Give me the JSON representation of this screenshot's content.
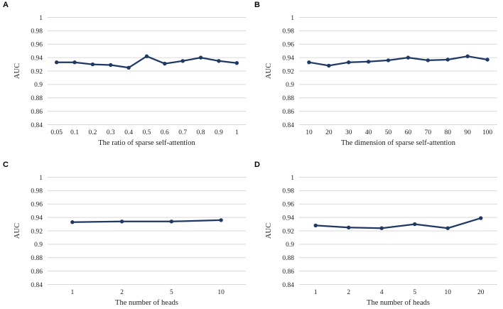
{
  "figure": {
    "background": "#ffffff",
    "line_color": "#1f3864",
    "gridline_color": "#d9d9d9",
    "text_color": "#1f1f1f",
    "marker": "circle"
  },
  "chart_data": [
    {
      "type": "line",
      "panel_label": "A",
      "xlabel": "The ratio of sparse self-attention",
      "ylabel": "AUC",
      "categories": [
        "0.05",
        "0.1",
        "0.2",
        "0.3",
        "0.4",
        "0.5",
        "0.6",
        "0.7",
        "0.8",
        "0.9",
        "1"
      ],
      "values": [
        0.933,
        0.933,
        0.93,
        0.929,
        0.925,
        0.942,
        0.931,
        0.935,
        0.94,
        0.935,
        0.932
      ],
      "ylim": [
        0.84,
        1
      ],
      "y_tick_labels": [
        "1",
        "0.98",
        "0.96",
        "0.94",
        "0.92",
        "0.9",
        "0.88",
        "0.86",
        "0.84"
      ],
      "grid": "horizontal",
      "legend": "none"
    },
    {
      "type": "line",
      "panel_label": "B",
      "xlabel": "The dimension of sparse self-attention",
      "ylabel": "AUC",
      "categories": [
        "10",
        "20",
        "30",
        "40",
        "50",
        "60",
        "70",
        "80",
        "90",
        "100"
      ],
      "values": [
        0.933,
        0.928,
        0.933,
        0.934,
        0.936,
        0.94,
        0.936,
        0.937,
        0.942,
        0.937
      ],
      "ylim": [
        0.84,
        1
      ],
      "y_tick_labels": [
        "1",
        "0.98",
        "0.96",
        "0.94",
        "0.92",
        "0.9",
        "0.88",
        "0.86",
        "0.84"
      ],
      "grid": "horizontal",
      "legend": "none"
    },
    {
      "type": "line",
      "panel_label": "C",
      "xlabel": "The number of heads",
      "ylabel": "AUC",
      "categories": [
        "1",
        "2",
        "5",
        "10"
      ],
      "values": [
        0.933,
        0.934,
        0.934,
        0.936
      ],
      "ylim": [
        0.84,
        1
      ],
      "y_tick_labels": [
        "1",
        "0.98",
        "0.96",
        "0.94",
        "0.92",
        "0.9",
        "0.88",
        "0.86",
        "0.84"
      ],
      "grid": "horizontal",
      "legend": "none"
    },
    {
      "type": "line",
      "panel_label": "D",
      "xlabel": "The number of heads",
      "ylabel": "AUC",
      "categories": [
        "1",
        "2",
        "4",
        "5",
        "10",
        "20"
      ],
      "values": [
        0.928,
        0.925,
        0.924,
        0.93,
        0.924,
        0.939
      ],
      "ylim": [
        0.84,
        1
      ],
      "y_tick_labels": [
        "1",
        "0.98",
        "0.96",
        "0.94",
        "0.92",
        "0.9",
        "0.88",
        "0.86",
        "0.84"
      ],
      "grid": "horizontal",
      "legend": "none"
    }
  ]
}
